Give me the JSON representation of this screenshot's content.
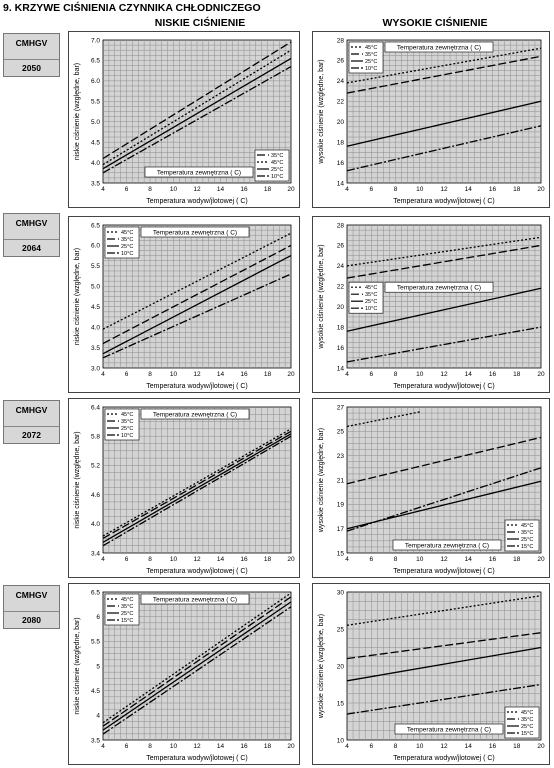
{
  "page": {
    "title": "9. KRZYWE CIŚNIENIA CZYNNIKA CHŁODNICZEGO",
    "col_low": "NISKIE CIŚNIENIE",
    "col_high": "WYSOKIE CIŚNIENIE",
    "models": [
      {
        "line1": "CMHGV",
        "line2": "2050"
      },
      {
        "line1": "CMHGV",
        "line2": "2064"
      },
      {
        "line1": "CMHGV",
        "line2": "2072"
      },
      {
        "line1": "CMHGV",
        "line2": "2080"
      }
    ]
  },
  "colors": {
    "grid": "#8c8c8c",
    "plot_bg": "#d4d4d4",
    "line": "#000000"
  },
  "chart_data": [
    {
      "type": "line",
      "model": "2050",
      "kind": "low",
      "xlabel": "Temperatura wodyw/jlotowej ( C)",
      "ylabel": "niskie ciśnienie (względne, bar)",
      "legend_title": "Temperatura zewnętrzna ( C)",
      "legend_position": "bottom-right",
      "xlim": [
        4,
        20
      ],
      "ylim": [
        3.5,
        7.0
      ],
      "xticks": [
        4,
        6,
        8,
        10,
        12,
        14,
        16,
        18,
        20
      ],
      "yticks": [
        3.5,
        4.0,
        4.5,
        5.0,
        5.5,
        6.0,
        6.5,
        7.0
      ],
      "ytick_labels": [
        "3.5",
        "4.0",
        "4.5",
        "5.0",
        "5.5",
        "6.0",
        "6.5",
        "7.0"
      ],
      "series": [
        {
          "name": "35°C",
          "dash": "8,3",
          "x": [
            4,
            20
          ],
          "y": [
            4.1,
            6.95
          ]
        },
        {
          "name": "45°C",
          "dash": "2,2",
          "x": [
            4,
            20
          ],
          "y": [
            3.95,
            6.75
          ]
        },
        {
          "name": "25°C",
          "dash": "",
          "x": [
            4,
            20
          ],
          "y": [
            3.85,
            6.55
          ]
        },
        {
          "name": "10°C",
          "dash": "8,2,2,2",
          "x": [
            4,
            20
          ],
          "y": [
            3.75,
            6.35
          ]
        }
      ]
    },
    {
      "type": "line",
      "model": "2050",
      "kind": "high",
      "xlabel": "Temperatura wodyw/jlotowej ( C)",
      "ylabel": "wysokie ciśnienie (względne, bar)",
      "legend_title": "Temperatura zewnętrzna ( C)",
      "legend_position": "top-left",
      "xlim": [
        4,
        20
      ],
      "ylim": [
        14,
        28
      ],
      "xticks": [
        4,
        6,
        8,
        10,
        12,
        14,
        16,
        18,
        20
      ],
      "yticks": [
        14,
        16,
        18,
        20,
        22,
        24,
        26,
        28
      ],
      "ytick_labels": [
        "14",
        "16",
        "18",
        "20",
        "22",
        "24",
        "26",
        "28"
      ],
      "series": [
        {
          "name": "45°C",
          "dash": "2,2",
          "x": [
            4,
            20
          ],
          "y": [
            23.8,
            27.2
          ]
        },
        {
          "name": "35°C",
          "dash": "8,3",
          "x": [
            4,
            20
          ],
          "y": [
            22.8,
            26.4
          ]
        },
        {
          "name": "25°C",
          "dash": "",
          "x": [
            4,
            20
          ],
          "y": [
            17.6,
            22.0
          ]
        },
        {
          "name": "10°C",
          "dash": "8,2,2,2",
          "x": [
            4,
            20
          ],
          "y": [
            15.2,
            19.6
          ]
        }
      ]
    },
    {
      "type": "line",
      "model": "2064",
      "kind": "low",
      "xlabel": "Temperatura wodyw/jlotowej ( C)",
      "ylabel": "niskie ciśnienie (względne, bar)",
      "legend_title": "Temperatura zewnętrzna ( C)",
      "legend_position": "top-left",
      "xlim": [
        4,
        20
      ],
      "ylim": [
        3.0,
        6.5
      ],
      "xticks": [
        4,
        6,
        8,
        10,
        12,
        14,
        16,
        18,
        20
      ],
      "yticks": [
        3.0,
        3.5,
        4.0,
        4.5,
        5.0,
        5.5,
        6.0,
        6.5
      ],
      "ytick_labels": [
        "3.0",
        "3.5",
        "4.0",
        "4.5",
        "5.0",
        "5.5",
        "6.0",
        "6.5"
      ],
      "series": [
        {
          "name": "45°C",
          "dash": "2,2",
          "x": [
            4,
            20
          ],
          "y": [
            3.95,
            6.3
          ]
        },
        {
          "name": "35°C",
          "dash": "8,3",
          "x": [
            4,
            20
          ],
          "y": [
            3.6,
            6.0
          ]
        },
        {
          "name": "25°C",
          "dash": "",
          "x": [
            4,
            20
          ],
          "y": [
            3.35,
            5.75
          ]
        },
        {
          "name": "10°C",
          "dash": "8,2,2,2",
          "x": [
            4,
            20
          ],
          "y": [
            3.25,
            5.3
          ]
        }
      ]
    },
    {
      "type": "line",
      "model": "2064",
      "kind": "high",
      "xlabel": "Temperatura wodyw/jlotowej ( C)",
      "ylabel": "wysokie ciśnienie (względne, bar)",
      "legend_title": "Temperatura zewnętrzna ( C)",
      "legend_position": "middle-left",
      "xlim": [
        4,
        20
      ],
      "ylim": [
        14,
        28
      ],
      "xticks": [
        4,
        6,
        8,
        10,
        12,
        14,
        16,
        18,
        20
      ],
      "yticks": [
        14,
        16,
        18,
        20,
        22,
        24,
        26,
        28
      ],
      "ytick_labels": [
        "14",
        "16",
        "18",
        "20",
        "22",
        "24",
        "26",
        "28"
      ],
      "series": [
        {
          "name": "45°C",
          "dash": "2,2",
          "x": [
            4,
            20
          ],
          "y": [
            24.0,
            26.8
          ]
        },
        {
          "name": "35°C",
          "dash": "8,3",
          "x": [
            4,
            20
          ],
          "y": [
            22.8,
            26.0
          ]
        },
        {
          "name": "25°C",
          "dash": "",
          "x": [
            4,
            20
          ],
          "y": [
            17.6,
            21.8
          ]
        },
        {
          "name": "10°C",
          "dash": "8,2,2,2",
          "x": [
            4,
            20
          ],
          "y": [
            14.6,
            18.0
          ]
        }
      ]
    },
    {
      "type": "line",
      "model": "2072",
      "kind": "low",
      "xlabel": "Temperatura wodyw/jlotowej ( C)",
      "ylabel": "niskie ciśnienie (względne, bar)",
      "legend_title": "Temperatura zewnętrzna ( C)",
      "legend_position": "top-left",
      "xlim": [
        4,
        20
      ],
      "ylim": [
        3.4,
        6.4
      ],
      "xticks": [
        4,
        6,
        8,
        10,
        12,
        14,
        16,
        18,
        20
      ],
      "yticks": [
        3.4,
        4.0,
        4.6,
        5.2,
        5.8,
        6.4
      ],
      "ytick_labels": [
        "3.4",
        "4.0",
        "4.6",
        "5.2",
        "5.8",
        "6.4"
      ],
      "series": [
        {
          "name": "45°C",
          "dash": "2,2",
          "x": [
            4,
            20
          ],
          "y": [
            3.75,
            5.95
          ]
        },
        {
          "name": "35°C",
          "dash": "8,3",
          "x": [
            4,
            20
          ],
          "y": [
            3.7,
            5.9
          ]
        },
        {
          "name": "25°C",
          "dash": "",
          "x": [
            4,
            20
          ],
          "y": [
            3.62,
            5.85
          ]
        },
        {
          "name": "10°C",
          "dash": "8,2,2,2",
          "x": [
            4,
            20
          ],
          "y": [
            3.55,
            5.8
          ]
        }
      ]
    },
    {
      "type": "line",
      "model": "2072",
      "kind": "high",
      "xlabel": "Temperatura wodyw/jlotowej ( C)",
      "ylabel": "wysokie ciśnienie (względne, bar)",
      "legend_title": "Temperatura zewnętrzna ( C)",
      "legend_position": "bottom-left",
      "xlim": [
        4,
        20
      ],
      "ylim": [
        15,
        27
      ],
      "xticks": [
        4,
        6,
        8,
        10,
        12,
        14,
        16,
        18,
        20
      ],
      "yticks": [
        15,
        17,
        19,
        21,
        23,
        25,
        27
      ],
      "ytick_labels": [
        "15",
        "17",
        "19",
        "21",
        "23",
        "25",
        "27"
      ],
      "series": [
        {
          "name": "45°C",
          "dash": "2,2",
          "x": [
            4,
            10
          ],
          "y": [
            25.4,
            26.6
          ]
        },
        {
          "name": "35°C",
          "dash": "8,3",
          "x": [
            4,
            20
          ],
          "y": [
            20.7,
            24.5
          ]
        },
        {
          "name": "25°C",
          "dash": "",
          "x": [
            4,
            20
          ],
          "y": [
            17.0,
            20.9
          ]
        },
        {
          "name": "15°C",
          "dash": "8,2,2,2",
          "x": [
            4,
            20
          ],
          "y": [
            16.8,
            22.0
          ]
        }
      ]
    },
    {
      "type": "line",
      "model": "2080",
      "kind": "low",
      "xlabel": "Temperatura wodyw/jlotowej ( C)",
      "ylabel": "niskie ciśnienie (względne, bar)",
      "legend_title": "Temperatura zewnętrzna ( C)",
      "legend_position": "top-left",
      "xlim": [
        4,
        20
      ],
      "ylim": [
        3.5,
        6.5
      ],
      "xticks": [
        4,
        6,
        8,
        10,
        12,
        14,
        16,
        18,
        20
      ],
      "yticks": [
        3.5,
        4.0,
        4.5,
        5.0,
        5.5,
        6.0,
        6.5
      ],
      "ytick_labels": [
        "3.5",
        "4",
        "4.5",
        "5",
        "5.5",
        "6",
        "6.5"
      ],
      "series": [
        {
          "name": "45°C",
          "dash": "2,2",
          "x": [
            4,
            20
          ],
          "y": [
            3.85,
            6.48
          ]
        },
        {
          "name": "35°C",
          "dash": "8,3",
          "x": [
            4,
            20
          ],
          "y": [
            3.78,
            6.4
          ]
        },
        {
          "name": "25°C",
          "dash": "",
          "x": [
            4,
            20
          ],
          "y": [
            3.7,
            6.3
          ]
        },
        {
          "name": "15°C",
          "dash": "8,2,2,2",
          "x": [
            4,
            20
          ],
          "y": [
            3.62,
            6.2
          ]
        }
      ]
    },
    {
      "type": "line",
      "model": "2080",
      "kind": "high",
      "xlabel": "Temperatura wodyw/jlotowej ( C)",
      "ylabel": "wysokie ciśnienie (względne, bar)",
      "legend_title": "Temperatura zewnętrzna ( C)",
      "legend_position": "bottom-right",
      "xlim": [
        4,
        20
      ],
      "ylim": [
        10,
        30
      ],
      "xticks": [
        4,
        6,
        8,
        10,
        12,
        14,
        16,
        18,
        20
      ],
      "yticks": [
        10,
        15,
        20,
        25,
        30
      ],
      "ytick_labels": [
        "10",
        "15",
        "20",
        "25",
        "30"
      ],
      "series": [
        {
          "name": "45°C",
          "dash": "2,2",
          "x": [
            4,
            20
          ],
          "y": [
            25.5,
            29.5
          ]
        },
        {
          "name": "35°C",
          "dash": "8,3",
          "x": [
            4,
            20
          ],
          "y": [
            21.0,
            24.5
          ]
        },
        {
          "name": "25°C",
          "dash": "",
          "x": [
            4,
            20
          ],
          "y": [
            18.0,
            22.5
          ]
        },
        {
          "name": "15°C",
          "dash": "8,2,2,2",
          "x": [
            4,
            20
          ],
          "y": [
            13.5,
            17.5
          ]
        }
      ]
    }
  ]
}
